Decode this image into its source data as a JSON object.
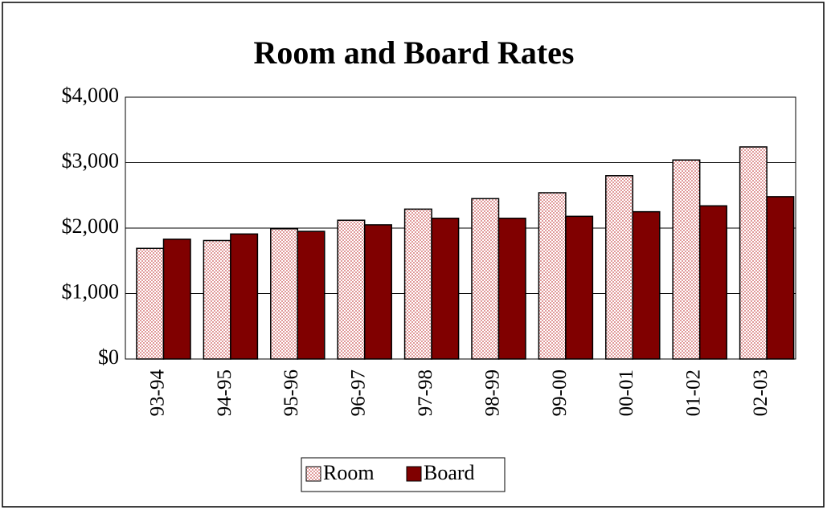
{
  "chart_data": {
    "type": "bar",
    "title": "Room and Board Rates",
    "categories": [
      "93-94",
      "94-95",
      "95-96",
      "96-97",
      "97-98",
      "98-99",
      "99-00",
      "00-01",
      "01-02",
      "02-03"
    ],
    "series": [
      {
        "name": "Room",
        "color": "#e09a9a",
        "values": [
          1690,
          1810,
          1990,
          2120,
          2290,
          2450,
          2540,
          2800,
          3040,
          3240
        ]
      },
      {
        "name": "Board",
        "color": "#800000",
        "values": [
          1830,
          1910,
          1950,
          2050,
          2150,
          2150,
          2180,
          2250,
          2340,
          2480
        ]
      }
    ],
    "ylim": [
      0,
      4000
    ],
    "yticks": [
      {
        "value": 0,
        "label": "$0"
      },
      {
        "value": 1000,
        "label": "$1,000"
      },
      {
        "value": 2000,
        "label": "$2,000"
      },
      {
        "value": 3000,
        "label": "$3,000"
      },
      {
        "value": 4000,
        "label": "$4,000"
      }
    ],
    "grid": true,
    "legend": "bottom"
  }
}
